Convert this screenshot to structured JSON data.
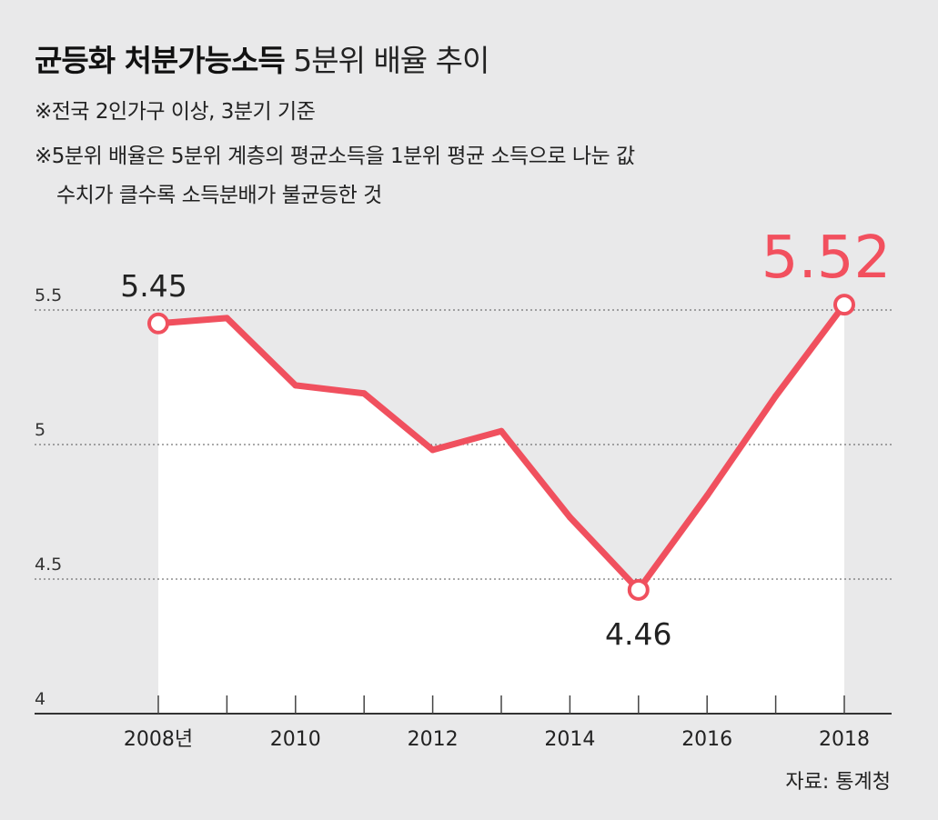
{
  "title": {
    "bold": "균등화 처분가능소득",
    "normal": "5분위 배율 추이"
  },
  "notes": [
    "※전국 2인가구 이상,  3분기 기준",
    "※5분위 배율은 5분위 계층의 평균소득을 1분위 평균 소득으로 나눈 값",
    "수치가 클수록 소득분배가 불균등한 것"
  ],
  "source": "자료: 통계청",
  "colors": {
    "line": "#f0505e",
    "highlight": "#f2505e",
    "grid": "#555555",
    "background": "#e9e9ea",
    "plot_fill": "#ffffff"
  },
  "chart_data": {
    "type": "line",
    "title": "균등화 처분가능소득 5분위 배율 추이",
    "x": [
      2008,
      2009,
      2010,
      2011,
      2012,
      2013,
      2014,
      2015,
      2016,
      2017,
      2018
    ],
    "series": [
      {
        "values": [
          5.45,
          5.47,
          5.22,
          5.19,
          4.98,
          5.05,
          4.73,
          4.46,
          4.81,
          5.18,
          5.52
        ]
      }
    ],
    "ylim": [
      4,
      5.5
    ],
    "yticks": [
      "4",
      "4.5",
      "5",
      "5.5"
    ],
    "xticks": [
      "2008년",
      "2010",
      "2012",
      "2014",
      "2016",
      "2018"
    ],
    "annotations": [
      {
        "x": 2008,
        "label": "5.45"
      },
      {
        "x": 2015,
        "label": "4.46"
      },
      {
        "x": 2018,
        "label": "5.52",
        "highlight": true
      }
    ],
    "grid": "horizontal dotted",
    "xlabel": "",
    "ylabel": ""
  }
}
